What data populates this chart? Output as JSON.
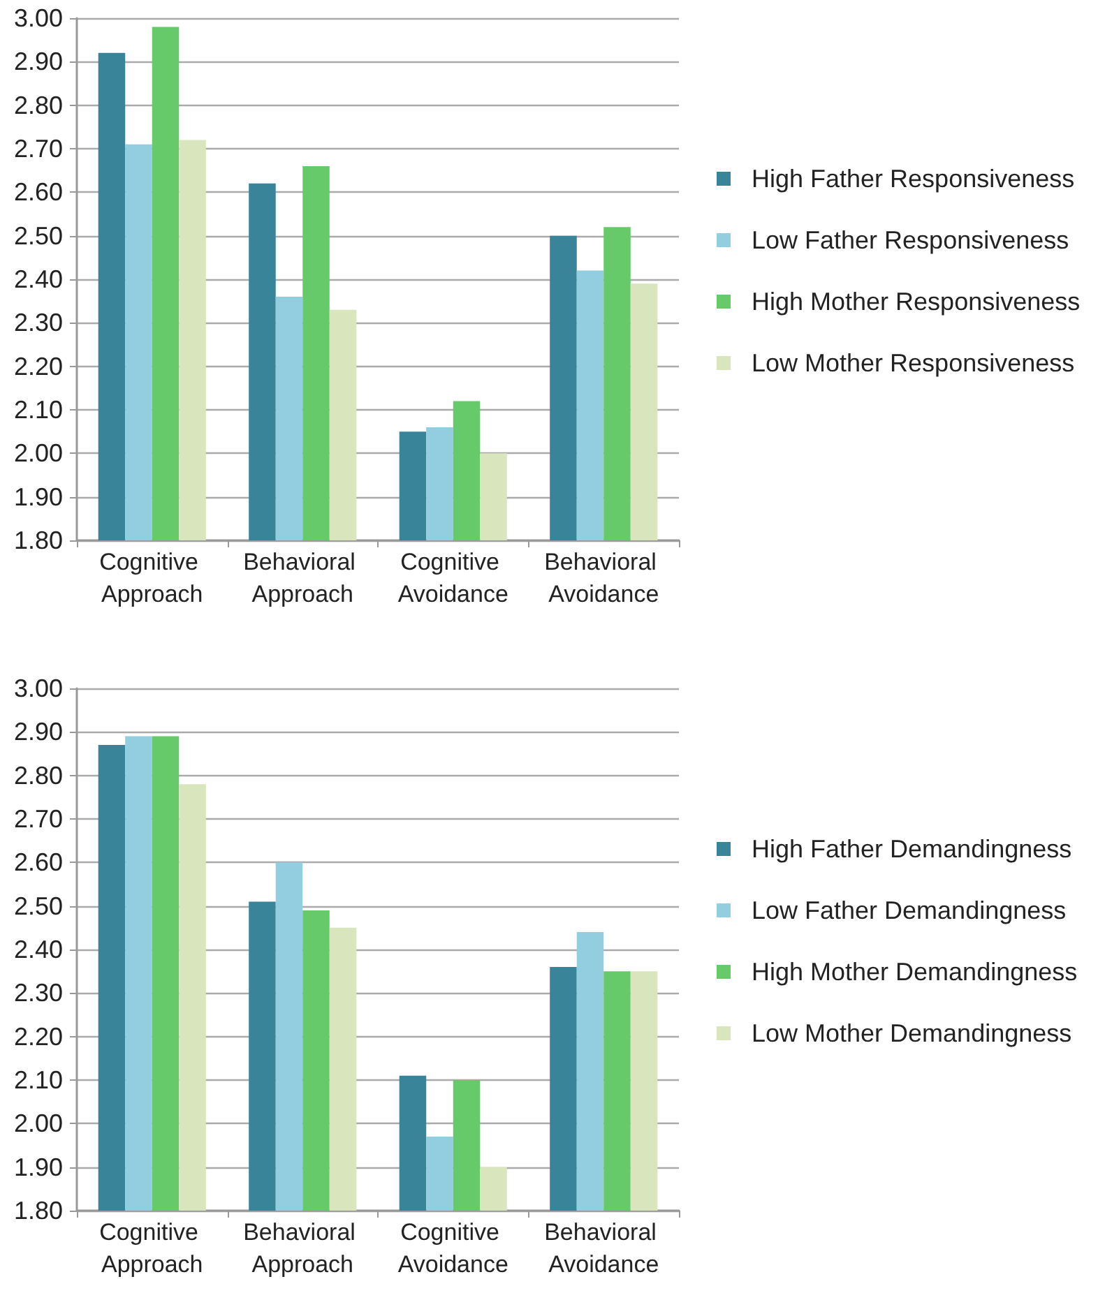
{
  "chart_data": [
    {
      "type": "bar",
      "categories": [
        "Cognitive Approach",
        "Behavioral Approach",
        "Cognitive Avoidance",
        "Behavioral Avoidance"
      ],
      "series": [
        {
          "name": "High Father Responsiveness",
          "color": "#3a8499",
          "values": [
            2.92,
            2.62,
            2.05,
            2.5
          ]
        },
        {
          "name": "Low Father Responsiveness",
          "color": "#93cde0",
          "values": [
            2.71,
            2.36,
            2.06,
            2.42
          ]
        },
        {
          "name": "High Mother Responsiveness",
          "color": "#66c96a",
          "values": [
            2.98,
            2.66,
            2.12,
            2.52
          ]
        },
        {
          "name": "Low Mother Responsiveness",
          "color": "#d8e5bd",
          "values": [
            2.72,
            2.33,
            2.0,
            2.39
          ]
        }
      ],
      "ylim": [
        1.8,
        3.0
      ],
      "yticks": [
        {
          "value": 1.8,
          "label": "1.80"
        },
        {
          "value": 1.9,
          "label": "1.90"
        },
        {
          "value": 2.0,
          "label": "2.00"
        },
        {
          "value": 2.1,
          "label": "2.10"
        },
        {
          "value": 2.2,
          "label": "2.20"
        },
        {
          "value": 2.3,
          "label": "2.30"
        },
        {
          "value": 2.4,
          "label": "2.40"
        },
        {
          "value": 2.5,
          "label": "2.50"
        },
        {
          "value": 2.6,
          "label": "2.60"
        },
        {
          "value": 2.7,
          "label": "2.70"
        },
        {
          "value": 2.8,
          "label": "2.80"
        },
        {
          "value": 2.9,
          "label": "2.90"
        },
        {
          "value": 3.0,
          "label": "3.00"
        }
      ],
      "grid": "y",
      "legend": "right"
    },
    {
      "type": "bar",
      "categories": [
        "Cognitive Approach",
        "Behavioral Approach",
        "Cognitive Avoidance",
        "Behavioral Avoidance"
      ],
      "series": [
        {
          "name": "High Father Demandingness",
          "color": "#3a8499",
          "values": [
            2.87,
            2.51,
            2.11,
            2.36
          ]
        },
        {
          "name": "Low Father Demandingness",
          "color": "#93cde0",
          "values": [
            2.89,
            2.6,
            1.97,
            2.44
          ]
        },
        {
          "name": "High Mother Demandingness",
          "color": "#66c96a",
          "values": [
            2.89,
            2.49,
            2.1,
            2.35
          ]
        },
        {
          "name": "Low Mother Demandingness",
          "color": "#d8e5bd",
          "values": [
            2.78,
            2.45,
            1.9,
            2.35
          ]
        }
      ],
      "ylim": [
        1.8,
        3.0
      ],
      "yticks": [
        {
          "value": 1.8,
          "label": "1.80"
        },
        {
          "value": 1.9,
          "label": "1.90"
        },
        {
          "value": 2.0,
          "label": "2.00"
        },
        {
          "value": 2.1,
          "label": "2.10"
        },
        {
          "value": 2.2,
          "label": "2.20"
        },
        {
          "value": 2.3,
          "label": "2.30"
        },
        {
          "value": 2.4,
          "label": "2.40"
        },
        {
          "value": 2.5,
          "label": "2.50"
        },
        {
          "value": 2.6,
          "label": "2.60"
        },
        {
          "value": 2.7,
          "label": "2.70"
        },
        {
          "value": 2.8,
          "label": "2.80"
        },
        {
          "value": 2.9,
          "label": "2.90"
        },
        {
          "value": 3.0,
          "label": "3.00"
        }
      ],
      "grid": "y",
      "legend": "right"
    }
  ]
}
